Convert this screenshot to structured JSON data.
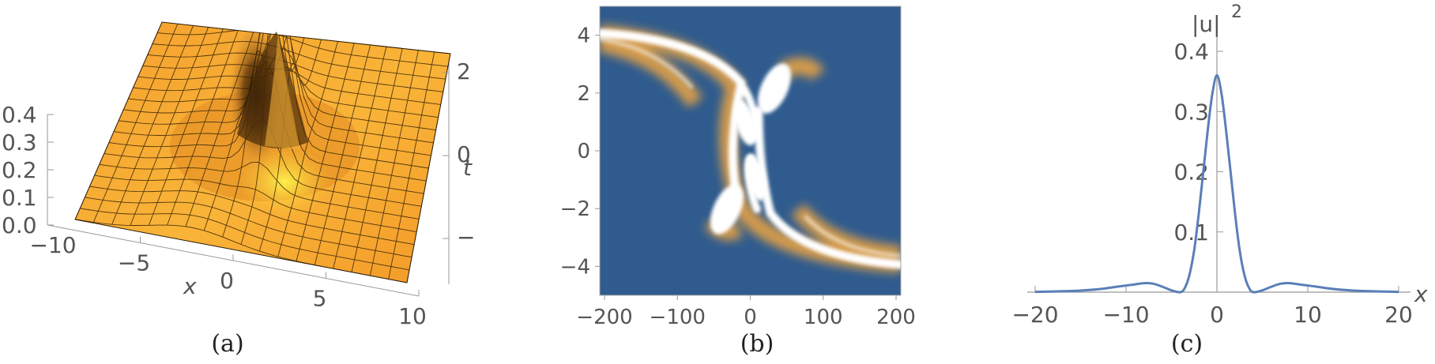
{
  "chart_data": [
    {
      "type": "surface3d",
      "panel_label": "(a)",
      "xlabel": "x",
      "ylabel": "t",
      "zlabel": "",
      "x_ticks": [
        "−10",
        "−5",
        "0",
        "5",
        "10"
      ],
      "t_ticks": [
        "−2",
        "0",
        "2"
      ],
      "z_ticks": [
        "0.0",
        "0.1",
        "0.2",
        "0.3",
        "0.4"
      ],
      "xlim": [
        -10,
        10
      ],
      "tlim": [
        -3,
        3
      ],
      "zlim": [
        0,
        0.4
      ],
      "colors": {
        "surface": "#f7a233",
        "peak_shadow": "#3b2308",
        "highlight": "#ffe84a",
        "mesh": "#2a1a05"
      }
    },
    {
      "type": "heatmap",
      "panel_label": "(b)",
      "xlabel": "",
      "ylabel": "",
      "x_ticks": [
        "−200",
        "−100",
        "0",
        "100",
        "200"
      ],
      "y_ticks": [
        "4",
        "2",
        "0",
        "−2",
        "−4"
      ],
      "xlim": [
        -200,
        200
      ],
      "ylim": [
        -5,
        5
      ],
      "colors": {
        "background": "#2f5b8e",
        "mid": "#f0a640",
        "peak": "#ffffff"
      }
    },
    {
      "type": "line",
      "panel_label": "(c)",
      "xlabel": "x",
      "ylabel": "|u|",
      "ylabel_sup": "2",
      "xlim": [
        -20,
        20
      ],
      "ylim": [
        0,
        0.4
      ],
      "x_ticks": [
        "−20",
        "−10",
        "0",
        "10",
        "20"
      ],
      "y_ticks": [
        "0.1",
        "0.2",
        "0.3",
        "0.4"
      ],
      "series": [
        {
          "color": "#5a7fb8",
          "x": [
            -20,
            -16,
            -13,
            -11,
            -9,
            -8,
            -7,
            -6,
            -5,
            -4,
            -3.5,
            -3,
            -2.5,
            -2,
            -1.5,
            -1,
            -0.5,
            0,
            0.5,
            1,
            1.5,
            2,
            2.5,
            3,
            3.5,
            4,
            5,
            6,
            7,
            8,
            9,
            11,
            13,
            16,
            20
          ],
          "y": [
            0.0005,
            0.002,
            0.005,
            0.009,
            0.013,
            0.015,
            0.014,
            0.009,
            0.003,
            0.0,
            0.008,
            0.03,
            0.07,
            0.13,
            0.2,
            0.27,
            0.33,
            0.36,
            0.33,
            0.27,
            0.2,
            0.13,
            0.07,
            0.03,
            0.008,
            0.0,
            0.003,
            0.009,
            0.014,
            0.015,
            0.013,
            0.009,
            0.005,
            0.002,
            0.0005
          ]
        }
      ]
    }
  ]
}
